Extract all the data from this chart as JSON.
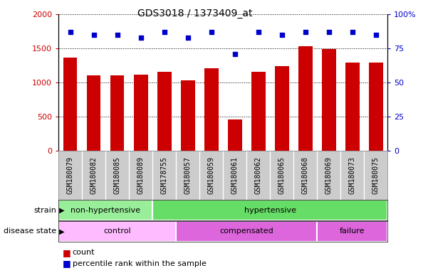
{
  "title": "GDS3018 / 1373409_at",
  "samples": [
    "GSM180079",
    "GSM180082",
    "GSM180085",
    "GSM180089",
    "GSM178755",
    "GSM180057",
    "GSM180059",
    "GSM180061",
    "GSM180062",
    "GSM180065",
    "GSM180068",
    "GSM180069",
    "GSM180073",
    "GSM180075"
  ],
  "counts": [
    1370,
    1110,
    1110,
    1120,
    1155,
    1040,
    1215,
    460,
    1155,
    1240,
    1530,
    1490,
    1295,
    1295
  ],
  "percentile_ranks": [
    87,
    85,
    85,
    83,
    87,
    83,
    87,
    71,
    87,
    85,
    87,
    87,
    87,
    85
  ],
  "bar_color": "#cc0000",
  "dot_color": "#0000cc",
  "left_ylim": [
    0,
    2000
  ],
  "right_ylim": [
    0,
    100
  ],
  "left_yticks": [
    0,
    500,
    1000,
    1500,
    2000
  ],
  "right_yticks": [
    0,
    25,
    50,
    75,
    100
  ],
  "right_yticklabels": [
    "0",
    "25",
    "50",
    "75",
    "100%"
  ],
  "strain_groups": [
    {
      "label": "non-hypertensive",
      "start": 0,
      "end": 4,
      "color": "#99ee99"
    },
    {
      "label": "hypertensive",
      "start": 4,
      "end": 14,
      "color": "#66dd66"
    }
  ],
  "disease_groups": [
    {
      "label": "control",
      "start": 0,
      "end": 5,
      "color": "#ffbbff"
    },
    {
      "label": "compensated",
      "start": 5,
      "end": 11,
      "color": "#dd66dd"
    },
    {
      "label": "failure",
      "start": 11,
      "end": 14,
      "color": "#dd66dd"
    }
  ],
  "legend_items": [
    {
      "color": "#cc0000",
      "label": "count"
    },
    {
      "color": "#0000cc",
      "label": "percentile rank within the sample"
    }
  ],
  "background_color": "#ffffff",
  "tick_area_color": "#cccccc",
  "grid_color": "black",
  "grid_linestyle": "dotted"
}
